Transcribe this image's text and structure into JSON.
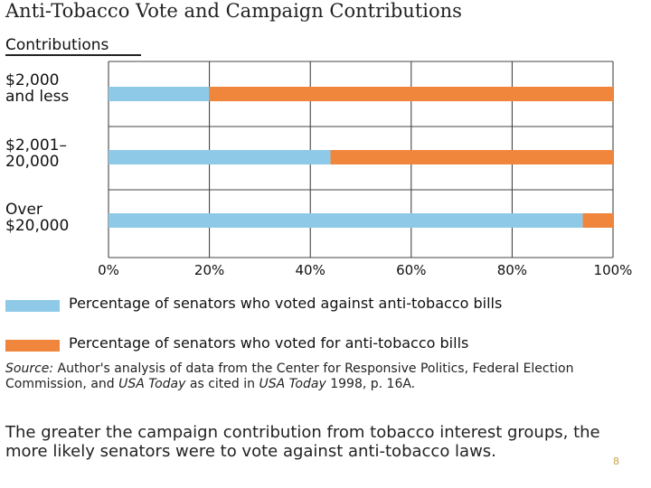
{
  "chart_data": {
    "type": "bar",
    "orientation": "horizontal",
    "stacked": true,
    "title": "Anti-Tobacco Vote and Campaign Contributions",
    "ylabel": "Contributions",
    "categories": [
      "$2,000\nand less",
      "$2,001–\n20,000",
      "Over\n$20,000"
    ],
    "series": [
      {
        "name": "Percentage of senators who voted against anti-tobacco bills",
        "values": [
          20,
          44,
          94
        ],
        "color": "#8ecae8"
      },
      {
        "name": "Percentage of senators who voted for anti-tobacco bills",
        "values": [
          80,
          56,
          6
        ],
        "color": "#f0863c"
      }
    ],
    "xlim": [
      0,
      100
    ],
    "xticks": [
      "0%",
      "20%",
      "40%",
      "60%",
      "80%",
      "100%"
    ],
    "grid": true
  },
  "source": {
    "prefix": "Source:",
    "text1": " Author's analysis of data from the Center for Responsive Politics, Federal Election Commission, and ",
    "em1": "USA Today",
    "text2": " as cited in ",
    "em2": "USA Today",
    "text3": " 1998, p. 16A."
  },
  "summary": "The greater the campaign contribution from tobacco interest groups, the more likely senators were to vote against anti-tobacco laws.",
  "page_number": "8"
}
